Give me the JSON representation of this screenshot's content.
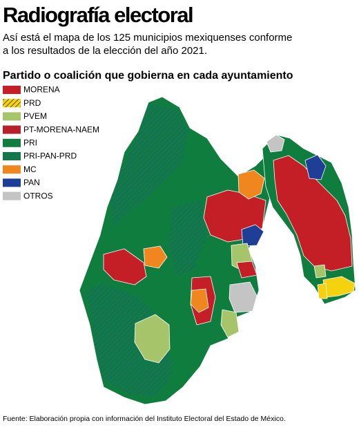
{
  "header": {
    "title": "Radiografía electoral",
    "subtitle_lines": [
      "Así está el mapa de los 125 municipios mexiquenses conforme",
      "a los resultados de la elección del año 2021."
    ]
  },
  "legend": {
    "title": "Partido o coalición que gobierna en cada ayuntamiento",
    "items": [
      {
        "label": "MORENA",
        "color": "#c41f26"
      },
      {
        "label": "PRD",
        "color": "#f5d20f",
        "hatch": "#1a1a1a"
      },
      {
        "label": "PVEM",
        "color": "#a6c46a"
      },
      {
        "label": "PT-MORENA-NAEM",
        "color": "#b5202a"
      },
      {
        "label": "PRI",
        "color": "#0e7d3d"
      },
      {
        "label": "PRI-PAN-PRD",
        "color": "#0e7d3d",
        "hatch": "#2a4fa0"
      },
      {
        "label": "MC",
        "color": "#f0871e"
      },
      {
        "label": "PAN",
        "color": "#1f3f96"
      },
      {
        "label": "OTROS",
        "color": "#c4c4c4"
      }
    ]
  },
  "footer": {
    "source": "Fuente: Elaboración propia con información del Instituto Electoral del Estado de México."
  }
}
